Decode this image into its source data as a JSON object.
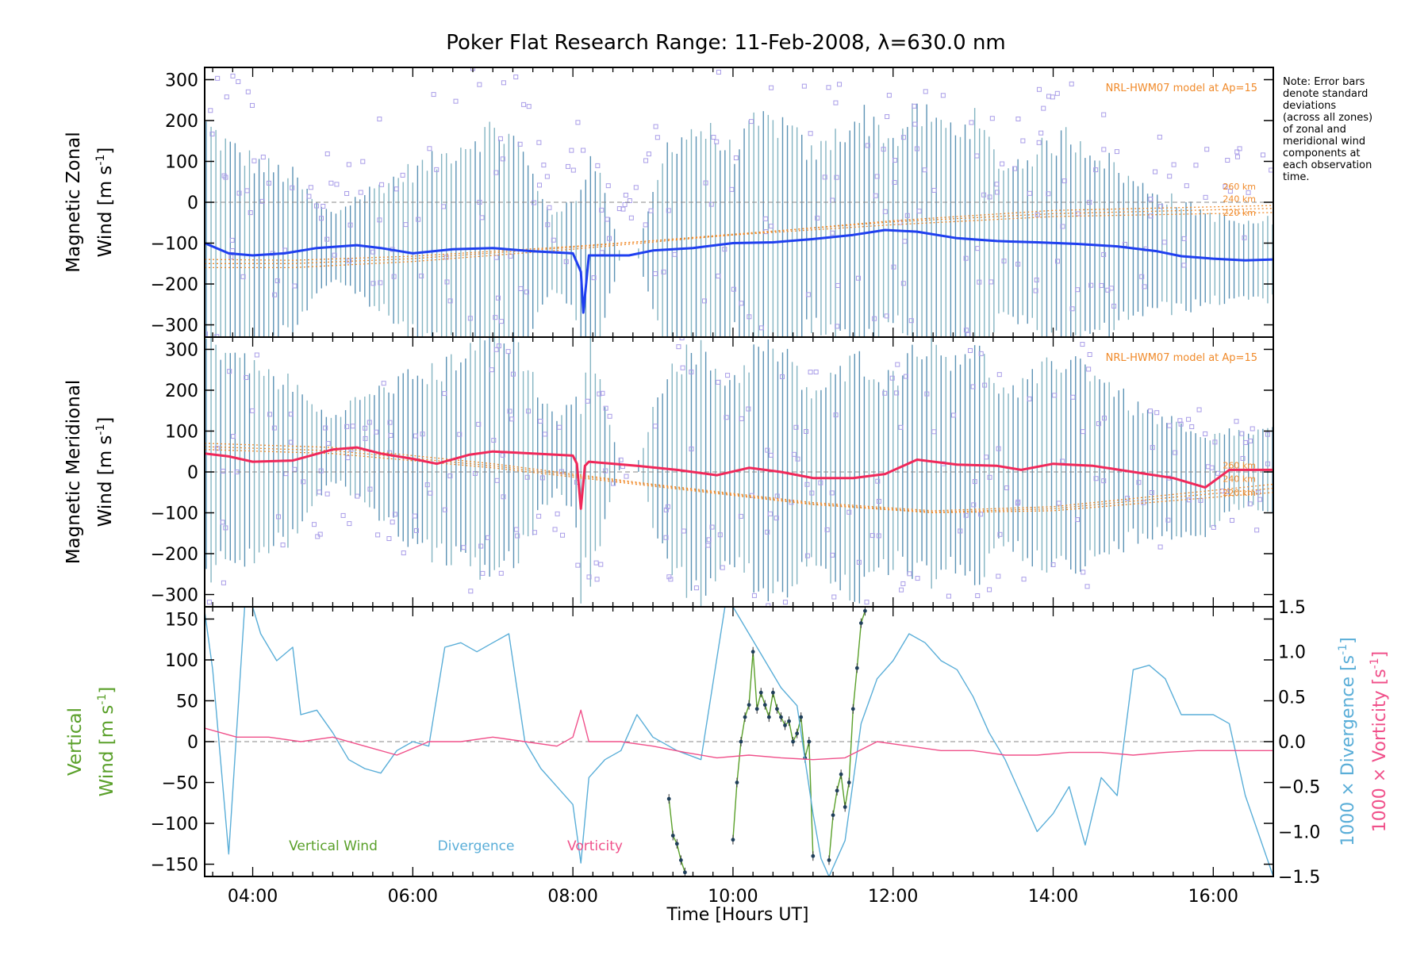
{
  "title": "Poker Flat Research Range: 11-Feb-2008, λ=630.0 nm",
  "note_lines": [
    "Note: Error bars",
    "denote standard",
    "deviations",
    "(across all zones)",
    "of zonal and",
    "meridional wind",
    "components at",
    "each observation",
    "time."
  ],
  "xlabel": "Time [Hours UT]",
  "colors": {
    "zonal": "#1f3ff0",
    "zonal_trend": "#4aa8f0",
    "meridional": "#f0285a",
    "vertical": "#5aa02a",
    "divergence": "#5aaed8",
    "vorticity": "#f0508a",
    "model": "#f08a2a",
    "scatter": "#a99de8",
    "errorbar": "#3f7fa8"
  },
  "chart_data": [
    {
      "type": "line",
      "panel": "zonal",
      "ylabel_line1": "Magnetic Zonal",
      "ylabel_line2": "Wind [m s",
      "ylabel_sup": "-1",
      "ylabel_end": "]",
      "ylim": [
        -330,
        330
      ],
      "yticks": [
        300,
        200,
        100,
        0,
        -100,
        -200,
        -300
      ],
      "xlim": [
        3.4,
        16.75
      ],
      "model_label": "NRL-HWM07 model at Ap=15",
      "model_altitudes": [
        "260 km",
        "240 km",
        "220 km"
      ],
      "zero_line": true,
      "series": [
        {
          "name": "Magnetic Zonal Wind",
          "color": "#1f3ff0",
          "x": [
            3.4,
            3.7,
            4.0,
            4.4,
            4.8,
            5.3,
            5.6,
            6.0,
            6.5,
            7.0,
            7.5,
            8.0,
            8.1,
            8.13,
            8.2,
            8.6,
            8.7,
            9.0,
            9.5,
            10.0,
            10.5,
            11.0,
            11.5,
            11.9,
            12.3,
            12.8,
            13.3,
            13.8,
            14.3,
            14.8,
            15.3,
            15.6,
            16.0,
            16.4,
            16.75
          ],
          "y": [
            -100,
            -125,
            -130,
            -125,
            -112,
            -105,
            -112,
            -125,
            -115,
            -112,
            -120,
            -125,
            -170,
            -270,
            -130,
            -130,
            -130,
            -118,
            -112,
            -100,
            -98,
            -90,
            -80,
            -68,
            -72,
            -88,
            -95,
            -98,
            -102,
            -108,
            -120,
            -132,
            -138,
            -142,
            -140
          ]
        }
      ],
      "model_series": [
        {
          "name": "260 km",
          "x": [
            3.4,
            4.5,
            6.0,
            8.0,
            10.0,
            12.0,
            14.0,
            16.75
          ],
          "y": [
            -160,
            -160,
            -145,
            -115,
            -80,
            -45,
            -20,
            -8
          ]
        },
        {
          "name": "240 km",
          "x": [
            3.4,
            4.5,
            6.0,
            8.0,
            10.0,
            12.0,
            14.0,
            16.75
          ],
          "y": [
            -150,
            -150,
            -138,
            -110,
            -78,
            -48,
            -28,
            -15
          ]
        },
        {
          "name": "220 km",
          "x": [
            3.4,
            4.5,
            6.0,
            8.0,
            10.0,
            12.0,
            14.0,
            16.75
          ],
          "y": [
            -140,
            -142,
            -132,
            -108,
            -80,
            -55,
            -35,
            -25
          ]
        }
      ]
    },
    {
      "type": "line",
      "panel": "meridional",
      "ylabel_line1": "Magnetic Meridional",
      "ylabel_line2": "Wind [m s",
      "ylabel_sup": "-1",
      "ylabel_end": "]",
      "ylim": [
        -330,
        330
      ],
      "yticks": [
        300,
        200,
        100,
        0,
        -100,
        -200,
        -300
      ],
      "xlim": [
        3.4,
        16.75
      ],
      "model_label": "NRL-HWM07 model at Ap=15",
      "model_altitudes": [
        "260 km",
        "240 km",
        "220 km"
      ],
      "zero_line": true,
      "series": [
        {
          "name": "Magnetic Meridional Wind",
          "color": "#f0285a",
          "x": [
            3.4,
            3.7,
            4.0,
            4.5,
            5.0,
            5.3,
            5.6,
            6.0,
            6.3,
            6.7,
            7.0,
            7.5,
            8.0,
            8.05,
            8.1,
            8.15,
            8.2,
            8.8,
            9.3,
            9.8,
            10.2,
            10.6,
            11.0,
            11.5,
            11.9,
            12.3,
            12.8,
            13.3,
            13.6,
            14.0,
            14.5,
            15.0,
            15.5,
            15.9,
            16.2,
            16.75
          ],
          "y": [
            45,
            38,
            25,
            28,
            55,
            60,
            45,
            32,
            20,
            42,
            50,
            45,
            40,
            20,
            -90,
            15,
            25,
            15,
            5,
            -8,
            10,
            0,
            -15,
            -15,
            -5,
            30,
            18,
            15,
            5,
            20,
            15,
            0,
            -15,
            -38,
            5,
            5
          ]
        }
      ],
      "model_series": [
        {
          "name": "260 km",
          "x": [
            3.4,
            5.0,
            7.0,
            9.0,
            11.0,
            12.5,
            14.0,
            15.5,
            16.75
          ],
          "y": [
            70,
            60,
            20,
            -30,
            -75,
            -95,
            -85,
            -55,
            -30
          ]
        },
        {
          "name": "240 km",
          "x": [
            3.4,
            5.0,
            7.0,
            9.0,
            11.0,
            12.5,
            14.0,
            15.5,
            16.75
          ],
          "y": [
            62,
            52,
            15,
            -32,
            -78,
            -98,
            -90,
            -62,
            -40
          ]
        },
        {
          "name": "220 km",
          "x": [
            3.4,
            5.0,
            7.0,
            9.0,
            11.0,
            12.5,
            14.0,
            15.5,
            16.75
          ],
          "y": [
            55,
            45,
            10,
            -35,
            -80,
            -100,
            -95,
            -70,
            -50
          ]
        }
      ]
    },
    {
      "type": "line",
      "panel": "vertical",
      "ylabel_left_line1": "Vertical",
      "ylabel_left_line2": "Wind [m s",
      "ylabel_left_sup": "-1",
      "ylabel_left_end": "]",
      "ylabel_right_1": "1000 × Divergence [s",
      "ylabel_right_2": "1000 × Vorticity [s",
      "ylabel_right_sup": "-1",
      "ylabel_right_end": "]",
      "ylim": [
        -165,
        165
      ],
      "yticks": [
        150,
        100,
        50,
        0,
        -50,
        -100,
        -150
      ],
      "y2lim": [
        -1.5,
        1.5
      ],
      "y2ticks": [
        "1.5",
        "1.0",
        "0.5",
        "0.0",
        "−0.5",
        "−1.0",
        "−1.5"
      ],
      "xlim": [
        3.4,
        16.75
      ],
      "xticks": [
        "04:00",
        "06:00",
        "08:00",
        "10:00",
        "12:00",
        "14:00",
        "16:00"
      ],
      "xtick_values": [
        4,
        6,
        8,
        10,
        12,
        14,
        16
      ],
      "legend": [
        "Vertical Wind",
        "Divergence",
        "Vorticity"
      ],
      "zero_line": true,
      "series": [
        {
          "name": "Vertical Wind",
          "color": "#5aa02a",
          "axis": "left",
          "x": [
            9.2,
            9.25,
            9.3,
            9.35,
            9.4
          ],
          "y": [
            -70,
            -115,
            -125,
            -145,
            -160
          ]
        },
        {
          "name": "Vertical Wind",
          "color": "#5aa02a",
          "axis": "left",
          "x": [
            10.0,
            10.05,
            10.1,
            10.15,
            10.2,
            10.25,
            10.3,
            10.35,
            10.4,
            10.45,
            10.5,
            10.55,
            10.6,
            10.65,
            10.7,
            10.75,
            10.8,
            10.85,
            10.9,
            10.95,
            11.0
          ],
          "y": [
            -120,
            -50,
            0,
            30,
            45,
            110,
            40,
            60,
            45,
            30,
            60,
            40,
            30,
            20,
            25,
            0,
            10,
            30,
            -20,
            0,
            -140
          ]
        },
        {
          "name": "Vertical Wind",
          "color": "#5aa02a",
          "axis": "left",
          "x": [
            11.2,
            11.25,
            11.3,
            11.35,
            11.4,
            11.45,
            11.5,
            11.55,
            11.6,
            11.65
          ],
          "y": [
            -145,
            -90,
            -60,
            -40,
            -80,
            -50,
            40,
            90,
            145,
            160
          ]
        },
        {
          "name": "Divergence",
          "color": "#5aaed8",
          "axis": "right",
          "x": [
            3.4,
            3.5,
            3.7,
            3.9,
            4.0,
            4.1,
            4.3,
            4.5,
            4.6,
            4.8,
            5.0,
            5.2,
            5.4,
            5.6,
            5.8,
            6.0,
            6.2,
            6.4,
            6.6,
            6.8,
            7.0,
            7.2,
            7.4,
            7.6,
            7.8,
            8.0,
            8.1,
            8.2,
            8.4,
            8.6,
            8.8,
            9.0,
            9.3,
            9.6,
            9.9,
            10.0,
            10.2,
            10.4,
            10.6,
            10.8,
            11.0,
            11.1,
            11.2,
            11.4,
            11.6,
            11.8,
            12.0,
            12.2,
            12.4,
            12.6,
            12.8,
            13.0,
            13.2,
            13.4,
            13.6,
            13.8,
            14.0,
            14.2,
            14.4,
            14.6,
            14.8,
            15.0,
            15.2,
            15.4,
            15.6,
            15.8,
            16.0,
            16.2,
            16.4,
            16.75
          ],
          "y": [
            1.45,
            0.8,
            -1.25,
            1.5,
            1.5,
            1.2,
            0.9,
            1.05,
            0.3,
            0.35,
            0.1,
            -0.2,
            -0.3,
            -0.35,
            -0.1,
            0.0,
            -0.05,
            1.05,
            1.1,
            1.0,
            1.1,
            1.2,
            0.0,
            -0.3,
            -0.5,
            -0.7,
            -1.35,
            -0.4,
            -0.2,
            -0.1,
            0.3,
            0.05,
            -0.1,
            -0.2,
            1.5,
            1.5,
            1.2,
            0.9,
            0.6,
            0.4,
            -0.8,
            -1.3,
            -1.5,
            -1.1,
            0.2,
            0.7,
            0.9,
            1.2,
            1.1,
            0.9,
            0.8,
            0.5,
            0.1,
            -0.2,
            -0.6,
            -1.0,
            -0.8,
            -0.5,
            -1.15,
            -0.4,
            -0.6,
            0.8,
            0.85,
            0.7,
            0.3,
            0.3,
            0.3,
            0.2,
            -0.6,
            -1.5
          ]
        },
        {
          "name": "Vorticity",
          "color": "#f0508a",
          "axis": "right",
          "x": [
            3.4,
            3.8,
            4.2,
            4.6,
            5.0,
            5.4,
            5.8,
            6.2,
            6.6,
            7.0,
            7.4,
            7.8,
            8.0,
            8.1,
            8.2,
            8.6,
            9.0,
            9.4,
            9.8,
            10.2,
            10.6,
            11.0,
            11.4,
            11.8,
            12.2,
            12.6,
            13.0,
            13.4,
            13.8,
            14.2,
            14.6,
            15.0,
            15.4,
            15.8,
            16.2,
            16.75
          ],
          "y": [
            0.15,
            0.05,
            0.05,
            0.0,
            0.05,
            -0.05,
            -0.15,
            0.0,
            0.0,
            0.05,
            0.0,
            -0.05,
            0.05,
            0.35,
            0.0,
            0.0,
            -0.05,
            -0.12,
            -0.18,
            -0.15,
            -0.18,
            -0.2,
            -0.18,
            0.0,
            -0.05,
            -0.1,
            -0.1,
            -0.15,
            -0.15,
            -0.12,
            -0.12,
            -0.15,
            -0.12,
            -0.1,
            -0.1,
            -0.1
          ]
        }
      ]
    }
  ]
}
